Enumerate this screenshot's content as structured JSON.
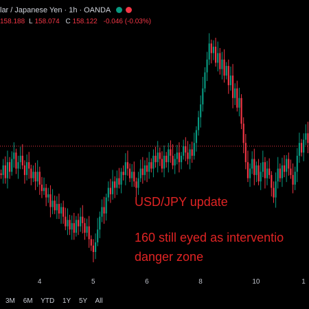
{
  "header": {
    "symbol": "lar / Japanese Yen",
    "interval": "1h",
    "broker": "OANDA",
    "separator": "·",
    "status_dot_color": "#089981",
    "alert_dot_color": "#f23645"
  },
  "ohlc": {
    "open_value": "158.188",
    "high_label": "L",
    "high_value": "158.074",
    "close_label": "C",
    "close_value": "158.122",
    "change": "-0.046 (-0.03%)"
  },
  "annotations": {
    "line1": "USD/JPY update",
    "line2": "160 still eyed as interventio",
    "line3": "danger zone"
  },
  "range_buttons": [
    "3M",
    "6M",
    "YTD",
    "1Y",
    "5Y",
    "All"
  ],
  "colors": {
    "up": "#089981",
    "down": "#f23645",
    "annotation": "#e02424"
  },
  "chart_data": {
    "type": "candlestick",
    "x_tick_labels": [
      {
        "label": "4",
        "index": 18
      },
      {
        "label": "5",
        "index": 43
      },
      {
        "label": "6",
        "index": 68
      },
      {
        "label": "8",
        "index": 93
      },
      {
        "label": "10",
        "index": 118
      },
      {
        "label": "1",
        "index": 141
      }
    ],
    "price_line": 156.1,
    "ylim": [
      152.2,
      159.8
    ],
    "close": [
      155.2,
      155.5,
      155.1,
      155.6,
      155.3,
      155.7,
      155.9,
      155.4,
      155.6,
      155.8,
      155.5,
      155.2,
      155.6,
      155.4,
      155.1,
      155.3,
      155.0,
      155.3,
      154.9,
      154.7,
      154.8,
      154.5,
      154.6,
      154.2,
      154.4,
      154.1,
      154.3,
      154.0,
      154.2,
      153.9,
      153.6,
      153.8,
      153.5,
      153.7,
      153.4,
      153.8,
      153.6,
      153.9,
      153.7,
      153.4,
      153.6,
      153.2,
      153.0,
      152.8,
      153.1,
      153.5,
      153.9,
      154.2,
      154.0,
      154.5,
      154.8,
      154.6,
      155.0,
      154.8,
      155.1,
      154.9,
      155.3,
      155.2,
      155.6,
      155.4,
      155.1,
      155.3,
      155.0,
      154.8,
      155.1,
      155.4,
      155.2,
      155.5,
      155.3,
      155.6,
      155.4,
      155.8,
      155.6,
      155.9,
      155.7,
      155.4,
      155.8,
      155.6,
      156.0,
      155.8,
      155.5,
      155.7,
      155.9,
      155.6,
      155.8,
      156.1,
      155.9,
      155.7,
      156.0,
      155.8,
      156.2,
      156.6,
      157.0,
      157.4,
      157.9,
      158.4,
      158.8,
      159.3,
      159.0,
      159.2,
      158.7,
      159.0,
      158.5,
      158.8,
      158.3,
      158.6,
      158.0,
      158.3,
      157.6,
      157.9,
      157.3,
      157.6,
      156.8,
      156.2,
      155.6,
      155.1,
      155.4,
      155.7,
      155.2,
      155.5,
      155.0,
      155.3,
      155.6,
      155.1,
      155.4,
      155.2,
      154.8,
      154.5,
      155.0,
      155.4,
      155.1,
      155.5,
      155.3,
      155.7,
      155.4,
      155.2,
      154.9,
      155.3,
      155.8,
      156.2,
      155.9,
      156.3,
      156.5,
      156.2
    ]
  }
}
